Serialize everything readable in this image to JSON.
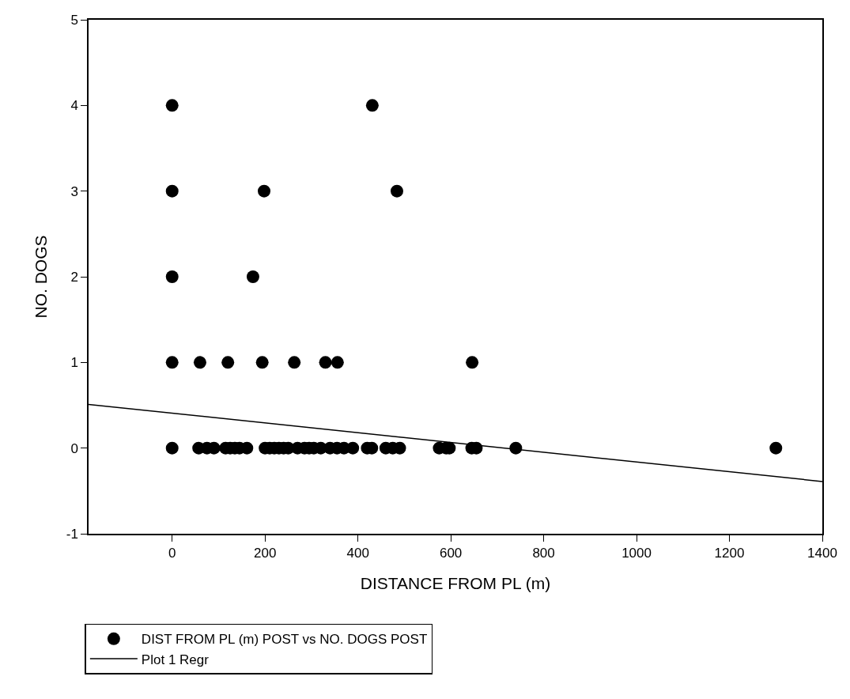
{
  "chart_data": {
    "type": "scatter",
    "xlabel": "DISTANCE FROM PL (m)",
    "ylabel": "NO. DOGS",
    "xlim": [
      -180,
      1400
    ],
    "xticks": [
      0,
      200,
      400,
      600,
      800,
      1000,
      1200,
      1400
    ],
    "ylim": [
      -1,
      5
    ],
    "yticks": [
      -1,
      0,
      1,
      2,
      3,
      4,
      5
    ],
    "legend": "bottom left",
    "marker": "circle",
    "series": [
      {
        "name": "DIST FROM PL (m) POST vs NO. DOGS POST",
        "color": "#000000",
        "x": [
          0,
          431,
          0,
          198,
          484,
          0,
          174,
          0,
          60,
          120,
          194,
          263,
          330,
          356,
          646,
          0,
          57,
          75,
          90,
          115,
          125,
          135,
          145,
          161,
          200,
          210,
          220,
          230,
          240,
          250,
          270,
          285,
          295,
          305,
          320,
          340,
          355,
          370,
          389,
          420,
          430,
          460,
          475,
          490,
          575,
          590,
          597,
          645,
          655,
          740,
          1300
        ],
        "values": [
          4,
          4,
          3,
          3,
          3,
          2,
          2,
          1,
          1,
          1,
          1,
          1,
          1,
          1,
          1,
          0,
          0,
          0,
          0,
          0,
          0,
          0,
          0,
          0,
          0,
          0,
          0,
          0,
          0,
          0,
          0,
          0,
          0,
          0,
          0,
          0,
          0,
          0,
          0,
          0,
          0,
          0,
          0,
          0,
          0,
          0,
          0,
          0,
          0,
          0,
          0
        ]
      },
      {
        "name": "Plot 1 Regr",
        "type": "line",
        "color": "#000000",
        "line_style": "solid",
        "marker": "none",
        "x": [
          -180,
          1400
        ],
        "values": [
          0.51,
          -0.39
        ]
      }
    ]
  }
}
